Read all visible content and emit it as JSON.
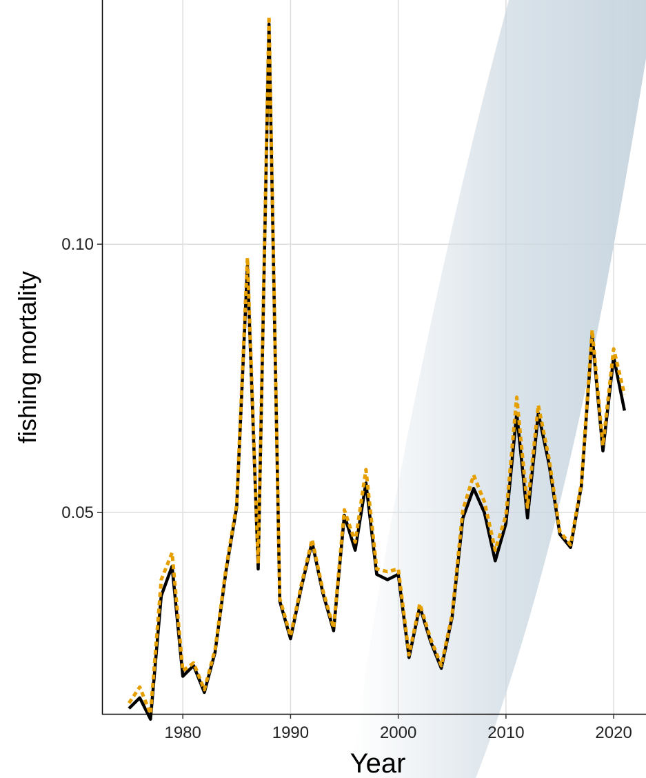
{
  "chart_data": {
    "type": "line",
    "xlabel": "Year",
    "ylabel": "fishing mortality",
    "xlim": [
      1972.5,
      2023
    ],
    "ylim": [
      0.0125,
      0.1455
    ],
    "x_ticks": [
      "1980",
      "1990",
      "2000",
      "2010",
      "2020"
    ],
    "y_ticks": [
      "0.05",
      "0.10"
    ],
    "grid": true,
    "legend": "none",
    "colors": {
      "solid": "#000000",
      "dashed": "#E69F00",
      "band": "#c9d6e0",
      "grid": "#dddddd"
    },
    "series": [
      {
        "style": "solid",
        "x": [
          1975,
          1976,
          1977,
          1978,
          1979,
          1980,
          1981,
          1982,
          1983,
          1984,
          1985,
          1986,
          1987,
          1988,
          1989,
          1990,
          1991,
          1992,
          1993,
          1994,
          1995,
          1996,
          1997,
          1998,
          1999,
          2000,
          2001,
          2002,
          2003,
          2004,
          2005,
          2006,
          2007,
          2008,
          2009,
          2010,
          2011,
          2012,
          2013,
          2014,
          2015,
          2016,
          2017,
          2018,
          2019,
          2020,
          2021
        ],
        "values": [
          0.0135,
          0.0155,
          0.0115,
          0.0345,
          0.04,
          0.0195,
          0.0215,
          0.0165,
          0.024,
          0.039,
          0.051,
          0.096,
          0.0395,
          0.141,
          0.0335,
          0.0265,
          0.036,
          0.0445,
          0.035,
          0.028,
          0.0495,
          0.043,
          0.0555,
          0.0385,
          0.0375,
          0.0385,
          0.023,
          0.0325,
          0.026,
          0.021,
          0.0305,
          0.049,
          0.0545,
          0.05,
          0.041,
          0.048,
          0.0685,
          0.049,
          0.0685,
          0.059,
          0.046,
          0.0435,
          0.055,
          0.083,
          0.0615,
          0.079,
          0.069
        ]
      },
      {
        "style": "dashed",
        "x": [
          1975,
          1976,
          1977,
          1978,
          1979,
          1980,
          1981,
          1982,
          1983,
          1984,
          1985,
          1986,
          1987,
          1988,
          1989,
          1990,
          1991,
          1992,
          1993,
          1994,
          1995,
          1996,
          1997,
          1998,
          1999,
          2000,
          2001,
          2002,
          2003,
          2004,
          2005,
          2006,
          2007,
          2008,
          2009,
          2010,
          2011,
          2012,
          2013,
          2014,
          2015,
          2016,
          2017,
          2018,
          2019,
          2020,
          2021
        ],
        "values": [
          0.0145,
          0.0175,
          0.0125,
          0.0375,
          0.0425,
          0.0205,
          0.022,
          0.017,
          0.0245,
          0.0395,
          0.0515,
          0.0975,
          0.0405,
          0.1425,
          0.034,
          0.027,
          0.0365,
          0.045,
          0.0355,
          0.0285,
          0.0505,
          0.0445,
          0.058,
          0.0395,
          0.039,
          0.0395,
          0.0235,
          0.033,
          0.0265,
          0.0215,
          0.031,
          0.0505,
          0.057,
          0.052,
          0.043,
          0.0495,
          0.0715,
          0.051,
          0.07,
          0.06,
          0.0465,
          0.044,
          0.0555,
          0.084,
          0.0625,
          0.0805,
          0.072
        ]
      }
    ]
  }
}
